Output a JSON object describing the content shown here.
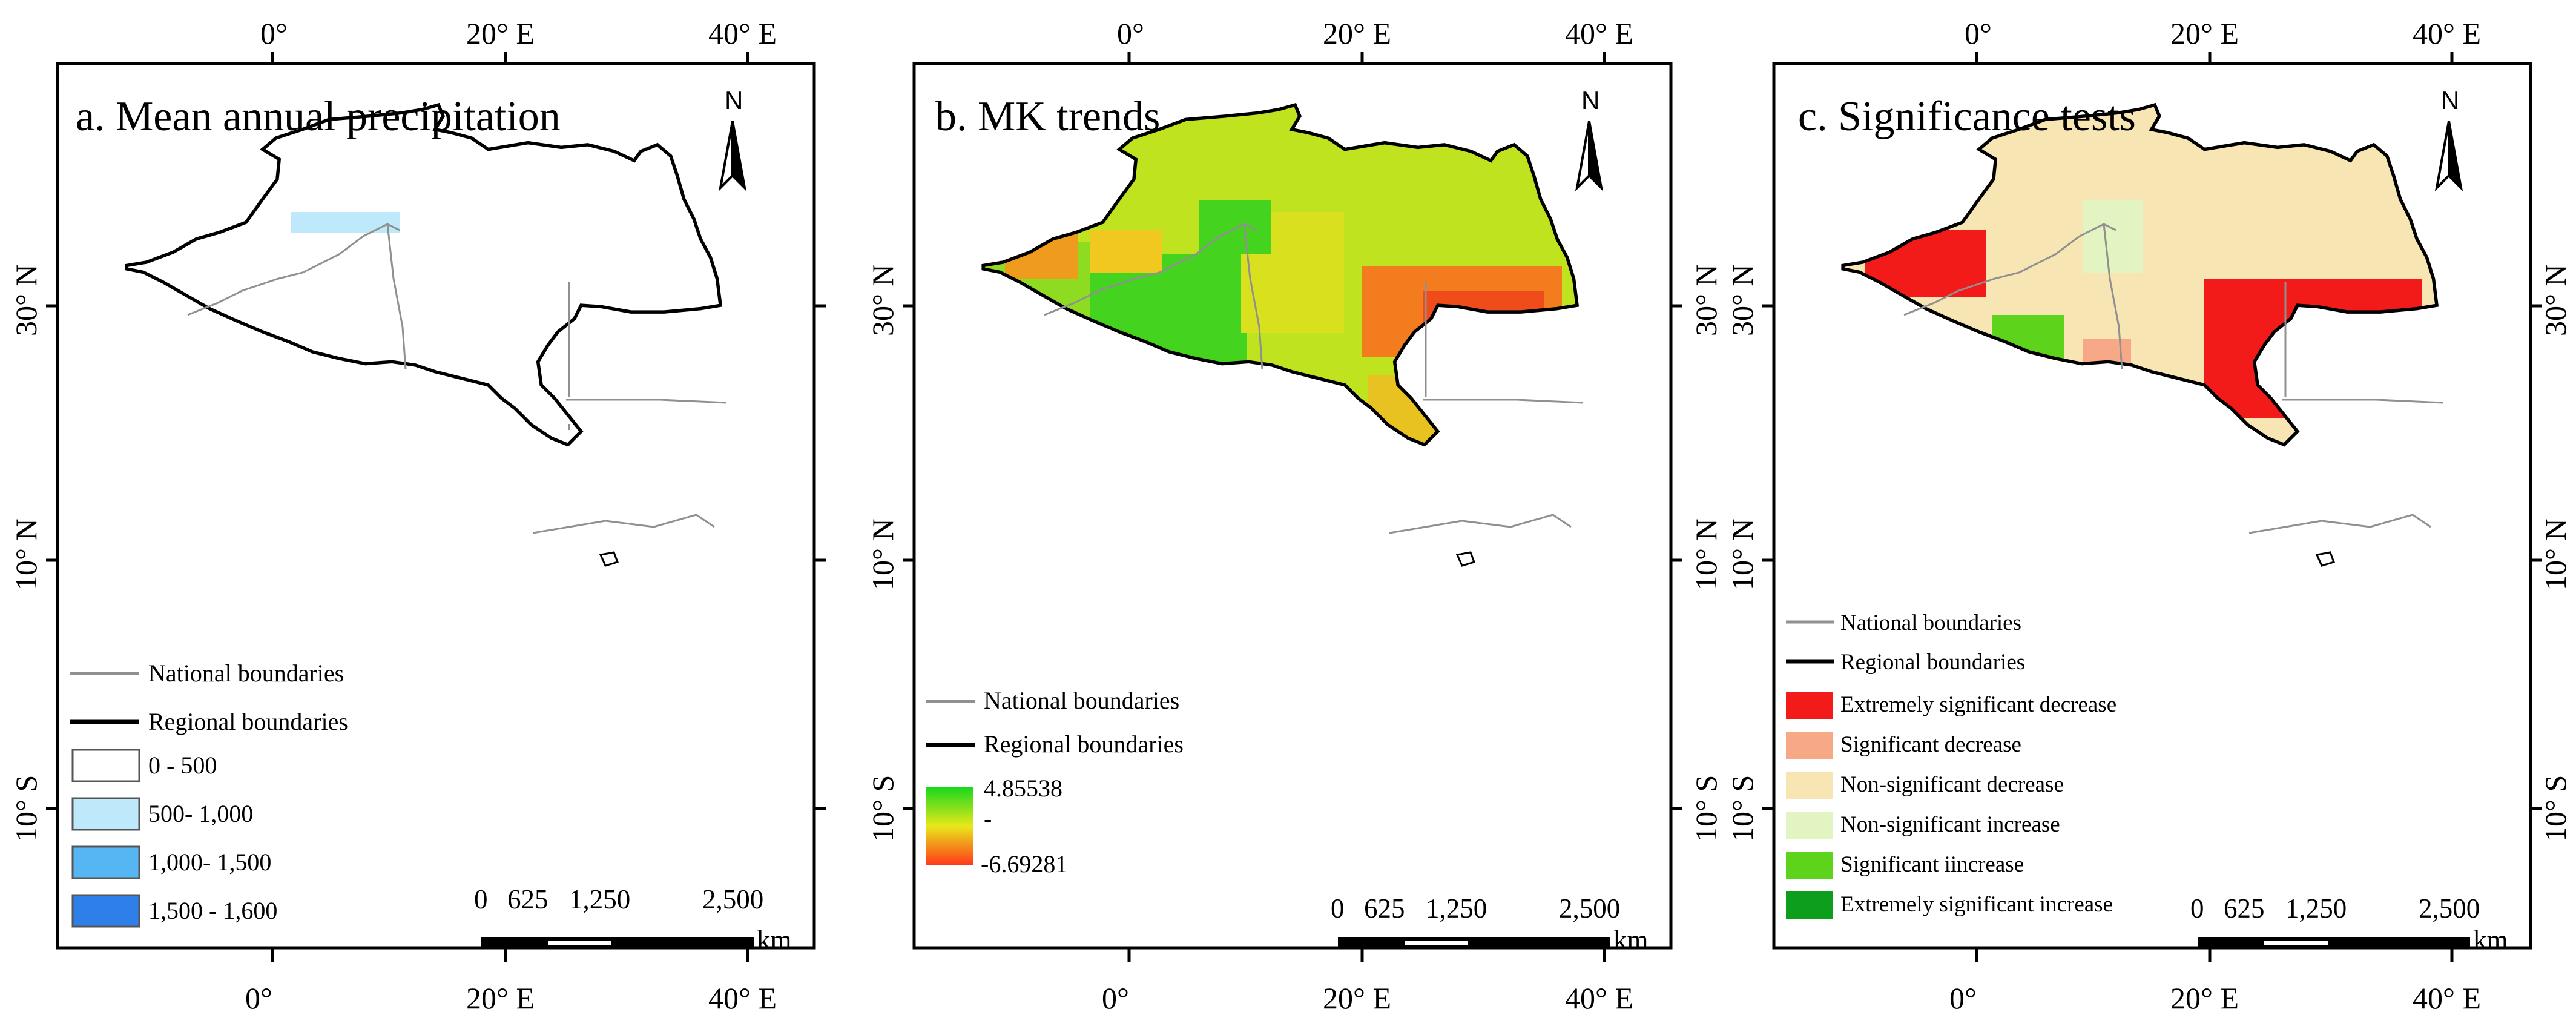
{
  "ticks": {
    "top": [
      "0°",
      "20° E",
      "40° E"
    ],
    "side": [
      "30° N",
      "10° N",
      "10° S"
    ]
  },
  "north_label": "N",
  "scalebar": {
    "labels": [
      "0",
      "625",
      "1,250",
      "2,500"
    ],
    "unit": "km"
  },
  "panels": [
    {
      "title": "a. Mean annual  precipitation",
      "legend": {
        "lines": [
          "National boundaries",
          "Regional boundaries"
        ],
        "classes": [
          {
            "label": "0 - 500",
            "color": "#ffffff"
          },
          {
            "label": "500- 1,000",
            "color": "#bde9fb"
          },
          {
            "label": "1,000- 1,500",
            "color": "#55b6f3"
          },
          {
            "label": "1,500 - 1,600",
            "color": "#2f7fea"
          }
        ]
      }
    },
    {
      "title": "b. MK trends",
      "legend": {
        "lines": [
          "National boundaries",
          "Regional boundaries"
        ],
        "ramp": {
          "max": "4.85538",
          "min": "-6.69281",
          "colors": [
            "#18d81e",
            "#e8e81a",
            "#ff3a1a"
          ]
        }
      }
    },
    {
      "title": "c. Significance tests",
      "legend": {
        "lines": [
          "National boundaries",
          "Regional boundaries"
        ],
        "classes": [
          {
            "label": "Extremely significant decrease",
            "color": "#f31a1a"
          },
          {
            "label": "Significant decrease",
            "color": "#f7a887"
          },
          {
            "label": "Non-significant decrease",
            "color": "#f7e5b4"
          },
          {
            "label": "Non-significant increase",
            "color": "#e3f4c3"
          },
          {
            "label": "Significant iincrease",
            "color": "#5dd31c"
          },
          {
            "label": "Extremely significant increase",
            "color": "#0e9e1e"
          }
        ]
      }
    }
  ]
}
